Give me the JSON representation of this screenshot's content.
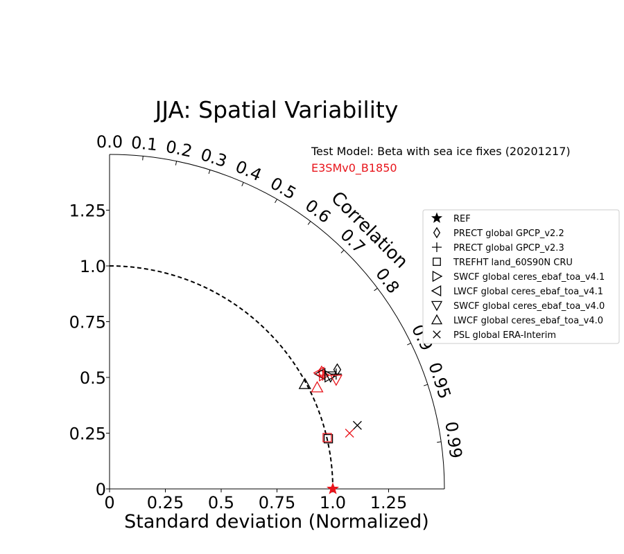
{
  "chart_data": {
    "type": "scatter",
    "title": "JJA: Spatial Variability",
    "xlabel": "Standard deviation (Normalized)",
    "arc_label": "Correlation",
    "test_model_label": "Test Model: Beta with sea ice fixes (20201217)",
    "ref_model_label": "E3SMv0_B1850",
    "xlim": [
      0,
      1.5
    ],
    "ylim": [
      0,
      1.5
    ],
    "std_ticks": [
      0,
      0.25,
      0.5,
      0.75,
      1.0,
      1.25
    ],
    "std_tick_labels": [
      "0",
      "0.25",
      "0.5",
      "0.75",
      "1.0",
      "1.25"
    ],
    "corr_ticks": [
      0.0,
      0.1,
      0.2,
      0.3,
      0.4,
      0.5,
      0.6,
      0.7,
      0.8,
      0.9,
      0.95,
      0.99
    ],
    "corr_tick_labels": [
      "0.0",
      "0.1",
      "0.2",
      "0.3",
      "0.4",
      "0.5",
      "0.6",
      "0.7",
      "0.8",
      "0.9",
      "0.95",
      "0.99"
    ],
    "ref_std": 1.0,
    "legend_position": "right",
    "colors": {
      "test": "#000000",
      "ref": "#e8141b"
    },
    "series": [
      {
        "name": "REF",
        "marker": "star",
        "points": [
          {
            "model": "ref",
            "x": 1.0,
            "y": 0.0
          }
        ]
      },
      {
        "name": "PRECT global GPCP_v2.2",
        "marker": "diamond",
        "points": [
          {
            "model": "test",
            "x": 1.02,
            "y": 0.535
          },
          {
            "model": "ref",
            "x": 0.95,
            "y": 0.525
          }
        ]
      },
      {
        "name": "PRECT global GPCP_v2.3",
        "marker": "plus",
        "points": [
          {
            "model": "test",
            "x": 1.015,
            "y": 0.515
          },
          {
            "model": "ref",
            "x": 0.955,
            "y": 0.51
          }
        ]
      },
      {
        "name": "TREFHT land_60S90N CRU",
        "marker": "square",
        "points": [
          {
            "model": "test",
            "x": 0.98,
            "y": 0.225
          },
          {
            "model": "ref",
            "x": 0.975,
            "y": 0.23
          }
        ]
      },
      {
        "name": "SWCF global ceres_ebaf_toa_v4.1",
        "marker": "triangle-right",
        "points": [
          {
            "model": "test",
            "x": 0.985,
            "y": 0.505
          },
          {
            "model": "ref",
            "x": 0.96,
            "y": 0.51
          }
        ]
      },
      {
        "name": "LWCF global ceres_ebaf_toa_v4.1",
        "marker": "triangle-left",
        "points": [
          {
            "model": "test",
            "x": 0.945,
            "y": 0.515
          },
          {
            "model": "ref",
            "x": 0.94,
            "y": 0.52
          }
        ]
      },
      {
        "name": "SWCF global ceres_ebaf_toa_v4.0",
        "marker": "triangle-down",
        "points": [
          {
            "model": "test",
            "x": 0.99,
            "y": 0.505
          },
          {
            "model": "ref",
            "x": 1.015,
            "y": 0.49
          }
        ]
      },
      {
        "name": "LWCF global ceres_ebaf_toa_v4.0",
        "marker": "triangle-up",
        "points": [
          {
            "model": "test",
            "x": 0.875,
            "y": 0.47
          },
          {
            "model": "ref",
            "x": 0.93,
            "y": 0.455
          }
        ]
      },
      {
        "name": "PSL global ERA-Interim",
        "marker": "x",
        "points": [
          {
            "model": "test",
            "x": 1.11,
            "y": 0.285
          },
          {
            "model": "ref",
            "x": 1.075,
            "y": 0.25
          }
        ]
      }
    ]
  }
}
